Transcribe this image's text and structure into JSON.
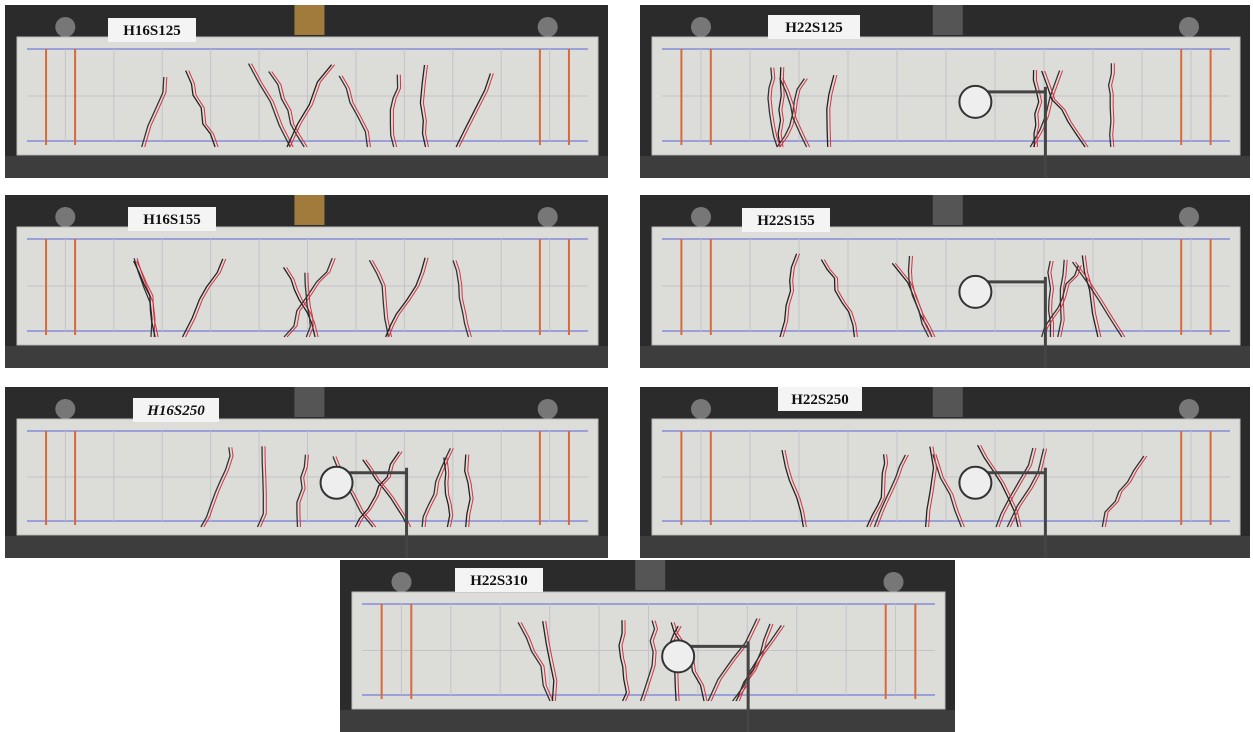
{
  "panels": [
    {
      "label": "H16S125"
    },
    {
      "label": "H22S125"
    },
    {
      "label": "H16S155"
    },
    {
      "label": "H22S155"
    },
    {
      "label": "H16S250"
    },
    {
      "label": "H22S250"
    },
    {
      "label": "H22S310"
    }
  ]
}
